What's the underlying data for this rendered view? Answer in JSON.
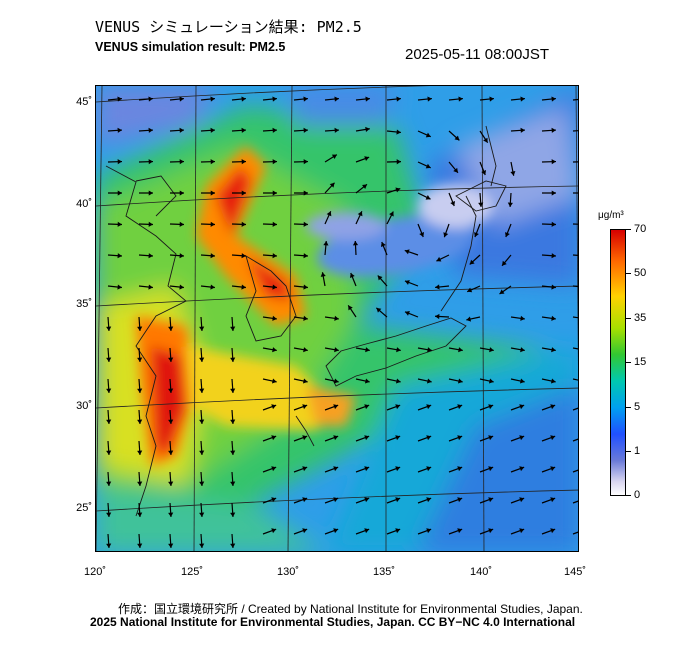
{
  "header": {
    "title_jp": "VENUS シミュレーション結果: PM2.5",
    "title_en": "VENUS simulation result: PM2.5",
    "timestamp": "2025-05-11 08:00JST"
  },
  "map": {
    "lat_labels": [
      "45˚",
      "40˚",
      "35˚",
      "30˚",
      "25˚"
    ],
    "lon_labels": [
      "120˚",
      "125˚",
      "130˚",
      "135˚",
      "140˚",
      "145˚"
    ]
  },
  "colorbar": {
    "unit": "μg/m³",
    "labels": [
      "70",
      "50",
      "35",
      "15",
      "5",
      "1",
      "0"
    ],
    "colors": [
      "#d60000",
      "#ff6a00",
      "#ffd200",
      "#32c832",
      "#00c8b0",
      "#2050ff",
      "#d9d6f0"
    ]
  },
  "credits": {
    "line1": "作成：国立環境研究所 / Created by National Institute for Environmental Studies, Japan.",
    "line2": "2025 National Institute for Environmental Studies, Japan. CC BY−NC 4.0 International"
  }
}
